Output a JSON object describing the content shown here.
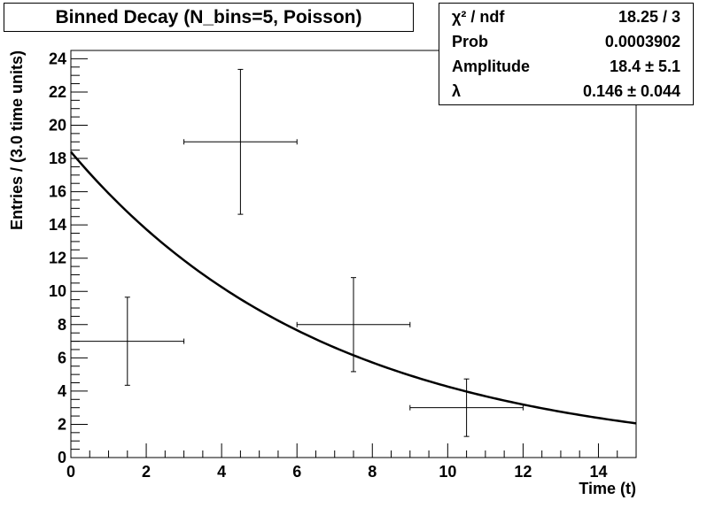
{
  "chart_data": {
    "type": "scatter",
    "title": "Binned Decay (N_bins=5, Poisson)",
    "xlabel": "Time (t)",
    "ylabel": "Entries / (3.0 time units)",
    "xlim": [
      0,
      15
    ],
    "ylim": [
      0,
      24.5
    ],
    "x_ticks": [
      0,
      2,
      4,
      6,
      8,
      10,
      12,
      14
    ],
    "y_ticks": [
      0,
      2,
      4,
      6,
      8,
      10,
      12,
      14,
      16,
      18,
      20,
      22,
      24
    ],
    "grid": false,
    "series": [
      {
        "kind": "points_with_errors",
        "points": [
          {
            "x": 1.5,
            "y": 7,
            "x_err": 1.5,
            "y_err_up": 2.65,
            "y_err_down": 2.65
          },
          {
            "x": 4.5,
            "y": 19,
            "x_err": 1.5,
            "y_err_up": 4.36,
            "y_err_down": 4.36
          },
          {
            "x": 7.5,
            "y": 8,
            "x_err": 1.5,
            "y_err_up": 2.83,
            "y_err_down": 2.83
          },
          {
            "x": 10.5,
            "y": 3,
            "x_err": 1.5,
            "y_err_up": 1.73,
            "y_err_down": 1.73
          }
        ]
      },
      {
        "kind": "fit_curve",
        "function": "exponential",
        "amplitude": 18.4,
        "lambda": 0.146,
        "x_range": [
          0,
          15
        ]
      }
    ],
    "stats": [
      {
        "label": "χ² / ndf",
        "value": "18.25 / 3"
      },
      {
        "label": "Prob",
        "value": "0.0003902"
      },
      {
        "label": "Amplitude",
        "value": "18.4 ± 5.1"
      },
      {
        "label": "λ",
        "value": "0.146 ± 0.044"
      }
    ],
    "stats_placement": "top-right"
  }
}
